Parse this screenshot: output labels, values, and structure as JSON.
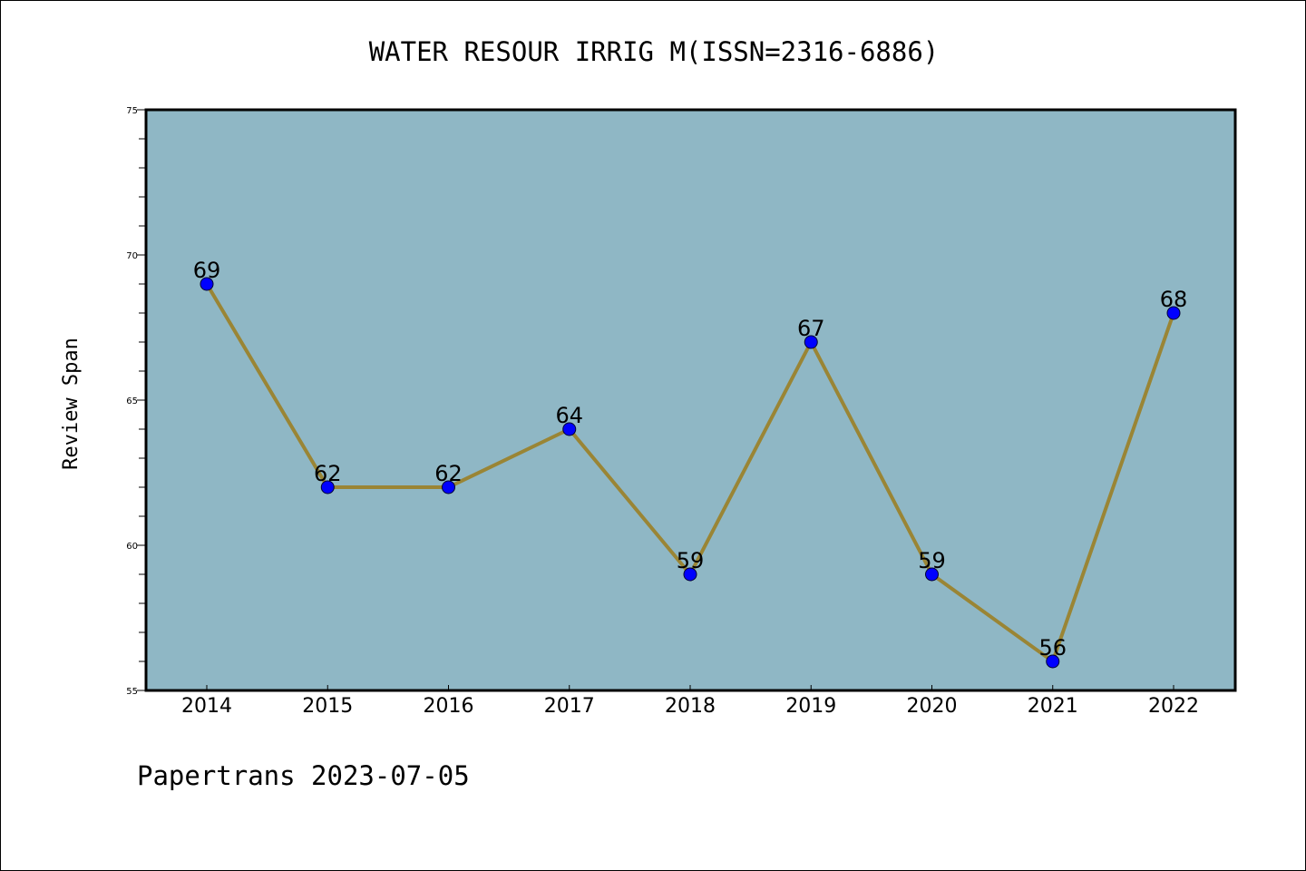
{
  "chart_data": {
    "type": "line",
    "title": "WATER RESOUR IRRIG M(ISSN=2316-6886)",
    "ylabel": "Review Span",
    "xlabel": "",
    "categories": [
      "2014",
      "2015",
      "2016",
      "2017",
      "2018",
      "2019",
      "2020",
      "2021",
      "2022"
    ],
    "values": [
      69,
      62,
      62,
      64,
      59,
      67,
      59,
      56,
      68
    ],
    "data_labels": [
      "69",
      "62",
      "62",
      "64",
      "59",
      "67",
      "59",
      "56",
      "68"
    ],
    "ylim": [
      55,
      75
    ],
    "y_ticks": [
      "55",
      "60",
      "65",
      "70",
      "75"
    ],
    "grid": false,
    "colors": {
      "plot_background": "#8fb7c5",
      "line": "#9a8535",
      "marker": "#0000ff"
    }
  },
  "footer": {
    "text": "Papertrans 2023-07-05"
  }
}
